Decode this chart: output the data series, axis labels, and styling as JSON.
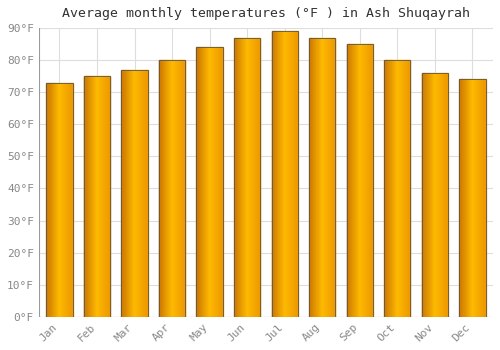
{
  "title": "Average monthly temperatures (°F ) in Ash Shuqayrah",
  "months": [
    "Jan",
    "Feb",
    "Mar",
    "Apr",
    "May",
    "Jun",
    "Jul",
    "Aug",
    "Sep",
    "Oct",
    "Nov",
    "Dec"
  ],
  "values": [
    73,
    75,
    77,
    80,
    84,
    87,
    89,
    87,
    85,
    80,
    76,
    74
  ],
  "bar_color_main": "#FFA500",
  "bar_color_light": "#FFD050",
  "bar_edge_color": "#555555",
  "background_color": "#FFFFFF",
  "grid_color": "#DDDDDD",
  "ylim": [
    0,
    90
  ],
  "yticks": [
    0,
    10,
    20,
    30,
    40,
    50,
    60,
    70,
    80,
    90
  ],
  "ytick_labels": [
    "0°F",
    "10°F",
    "20°F",
    "30°F",
    "40°F",
    "50°F",
    "60°F",
    "70°F",
    "80°F",
    "90°F"
  ],
  "title_fontsize": 9.5,
  "tick_fontsize": 8,
  "tick_color": "#888888",
  "title_color": "#333333"
}
